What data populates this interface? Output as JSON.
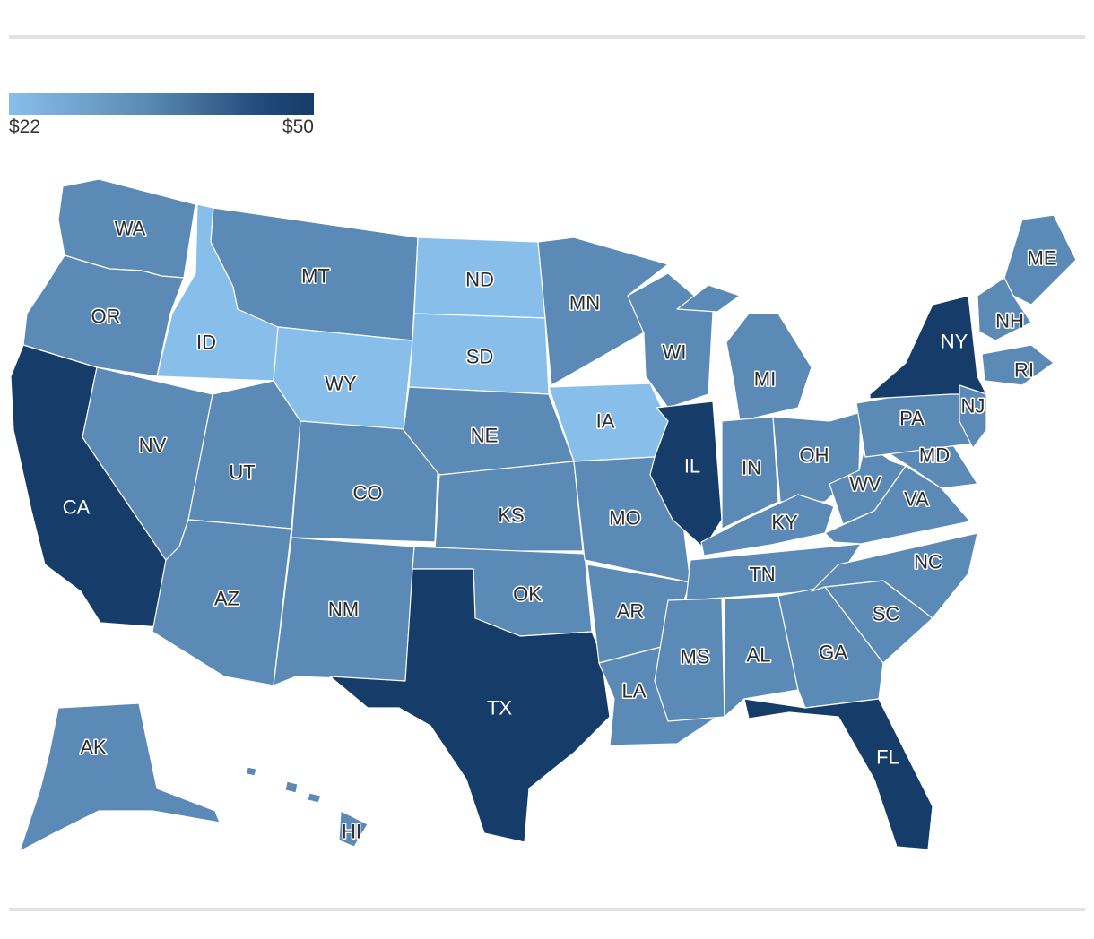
{
  "legend": {
    "min_label": "$22",
    "max_label": "$50",
    "min_value": 22,
    "max_value": 50,
    "color_low": "#88bfea",
    "color_mid": "#5b8ab6",
    "color_high": "#163c6a"
  },
  "states": [
    {
      "abbr": "WA",
      "tier": "mid"
    },
    {
      "abbr": "OR",
      "tier": "mid"
    },
    {
      "abbr": "CA",
      "tier": "high"
    },
    {
      "abbr": "ID",
      "tier": "low"
    },
    {
      "abbr": "NV",
      "tier": "mid"
    },
    {
      "abbr": "UT",
      "tier": "mid"
    },
    {
      "abbr": "AZ",
      "tier": "mid"
    },
    {
      "abbr": "MT",
      "tier": "mid"
    },
    {
      "abbr": "WY",
      "tier": "low"
    },
    {
      "abbr": "CO",
      "tier": "mid"
    },
    {
      "abbr": "NM",
      "tier": "mid"
    },
    {
      "abbr": "ND",
      "tier": "low"
    },
    {
      "abbr": "SD",
      "tier": "low"
    },
    {
      "abbr": "NE",
      "tier": "mid"
    },
    {
      "abbr": "KS",
      "tier": "mid"
    },
    {
      "abbr": "OK",
      "tier": "mid"
    },
    {
      "abbr": "TX",
      "tier": "high"
    },
    {
      "abbr": "MN",
      "tier": "mid"
    },
    {
      "abbr": "IA",
      "tier": "low"
    },
    {
      "abbr": "MO",
      "tier": "mid"
    },
    {
      "abbr": "AR",
      "tier": "mid"
    },
    {
      "abbr": "LA",
      "tier": "mid"
    },
    {
      "abbr": "WI",
      "tier": "mid"
    },
    {
      "abbr": "IL",
      "tier": "high"
    },
    {
      "abbr": "MI",
      "tier": "mid"
    },
    {
      "abbr": "IN",
      "tier": "mid"
    },
    {
      "abbr": "OH",
      "tier": "mid"
    },
    {
      "abbr": "KY",
      "tier": "mid"
    },
    {
      "abbr": "TN",
      "tier": "mid"
    },
    {
      "abbr": "MS",
      "tier": "mid"
    },
    {
      "abbr": "AL",
      "tier": "mid"
    },
    {
      "abbr": "GA",
      "tier": "mid"
    },
    {
      "abbr": "FL",
      "tier": "high"
    },
    {
      "abbr": "SC",
      "tier": "mid"
    },
    {
      "abbr": "NC",
      "tier": "mid"
    },
    {
      "abbr": "VA",
      "tier": "mid"
    },
    {
      "abbr": "WV",
      "tier": "mid"
    },
    {
      "abbr": "MD",
      "tier": "mid"
    },
    {
      "abbr": "PA",
      "tier": "mid"
    },
    {
      "abbr": "NY",
      "tier": "high"
    },
    {
      "abbr": "NJ",
      "tier": "mid"
    },
    {
      "abbr": "ME",
      "tier": "mid"
    },
    {
      "abbr": "NH",
      "tier": "mid"
    },
    {
      "abbr": "RI",
      "tier": "mid"
    },
    {
      "abbr": "AK",
      "tier": "mid"
    },
    {
      "abbr": "HI",
      "tier": "mid"
    }
  ]
}
